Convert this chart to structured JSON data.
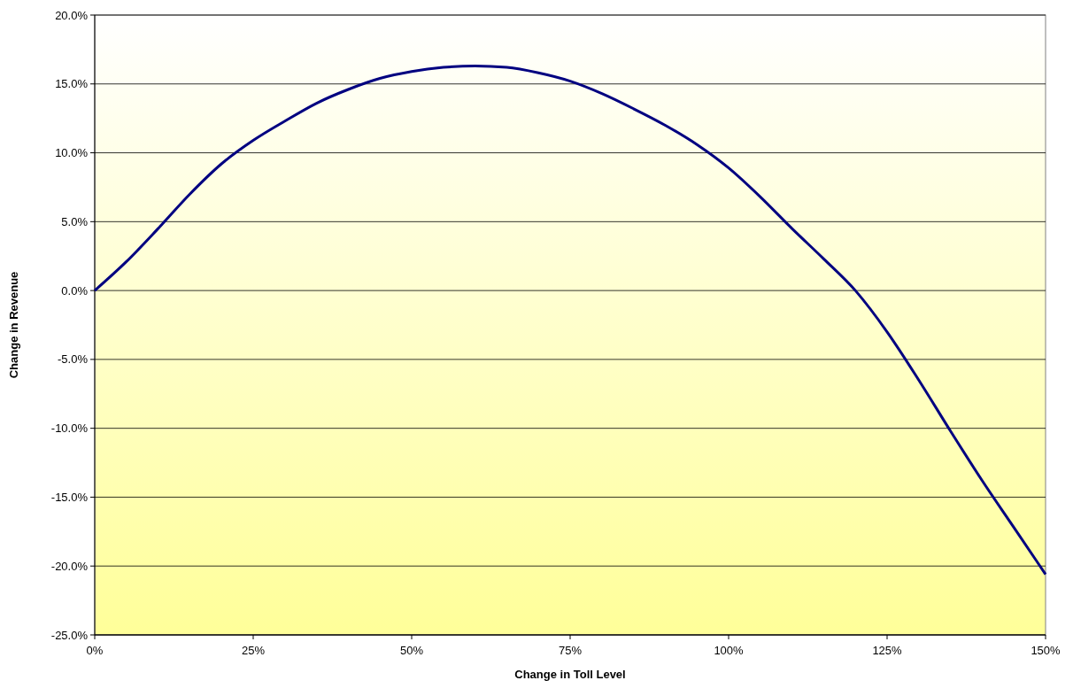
{
  "chart_data": {
    "type": "line",
    "xlabel": "Change in Toll Level",
    "ylabel": "Change in Revenue",
    "xlim": [
      0,
      150
    ],
    "ylim": [
      -25,
      20
    ],
    "xticks": [
      {
        "value": 0,
        "label": "0%"
      },
      {
        "value": 25,
        "label": "25%"
      },
      {
        "value": 50,
        "label": "50%"
      },
      {
        "value": 75,
        "label": "75%"
      },
      {
        "value": 100,
        "label": "100%"
      },
      {
        "value": 125,
        "label": "125%"
      },
      {
        "value": 150,
        "label": "150%"
      }
    ],
    "yticks": [
      {
        "value": -25,
        "label": "-25.0%"
      },
      {
        "value": -20,
        "label": "-20.0%"
      },
      {
        "value": -15,
        "label": "-15.0%"
      },
      {
        "value": -10,
        "label": "-10.0%"
      },
      {
        "value": -5,
        "label": "-5.0%"
      },
      {
        "value": 0,
        "label": "0.0%"
      },
      {
        "value": 5,
        "label": "5.0%"
      },
      {
        "value": 10,
        "label": "10.0%"
      },
      {
        "value": 15,
        "label": "15.0%"
      },
      {
        "value": 20,
        "label": "20.0%"
      }
    ],
    "grid": "y",
    "marker": "none",
    "line_style": "solid",
    "series": [
      {
        "color": "#000080",
        "x": [
          0,
          5,
          10,
          15,
          20,
          25,
          30,
          35,
          40,
          45,
          50,
          55,
          60,
          65,
          70,
          75,
          80,
          85,
          90,
          95,
          100,
          105,
          110,
          115,
          120,
          125,
          130,
          135,
          140,
          145,
          150
        ],
        "values": [
          0,
          2.1,
          4.5,
          7.0,
          9.2,
          10.9,
          12.3,
          13.6,
          14.6,
          15.4,
          15.9,
          16.2,
          16.3,
          16.2,
          15.8,
          15.2,
          14.3,
          13.2,
          12.0,
          10.6,
          8.9,
          6.8,
          4.5,
          2.3,
          0,
          -3.0,
          -6.5,
          -10.2,
          -13.8,
          -17.2,
          -20.6
        ]
      }
    ]
  }
}
